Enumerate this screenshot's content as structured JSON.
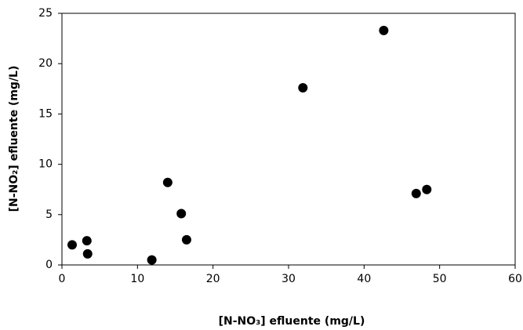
{
  "chart_data": {
    "type": "scatter",
    "x_label": "[N-NO₃] efluente (mg/L)",
    "y_label": "[N-NO₂] efluente (mg/L)",
    "x": [
      1.35,
      3.3,
      3.4,
      11.9,
      14.0,
      15.8,
      16.5,
      31.9,
      42.6,
      46.9,
      48.3
    ],
    "values": [
      2.0,
      2.4,
      1.1,
      0.5,
      8.2,
      5.1,
      2.5,
      17.6,
      23.3,
      7.1,
      7.5
    ],
    "color": "#000000",
    "xlim": [
      0,
      60
    ],
    "xticks": [
      0,
      10,
      20,
      30,
      40,
      50,
      60
    ],
    "ylim": [
      0,
      25
    ],
    "yticks": [
      0,
      5,
      10,
      15,
      20,
      25
    ],
    "grid": false
  }
}
